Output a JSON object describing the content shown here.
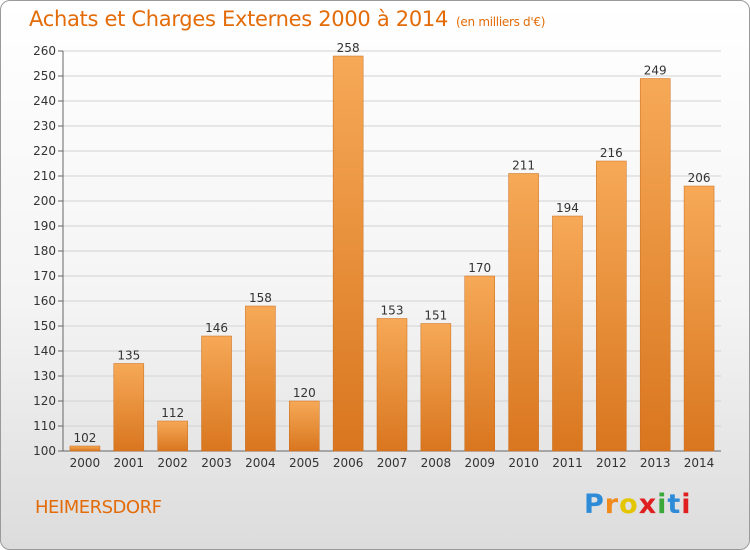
{
  "title": "Achats et Charges Externes 2000 à 2014",
  "subtitle": "(en milliers d'€)",
  "commune": "HEIMERSDORF",
  "brand": {
    "letters": [
      "P",
      "r",
      "o",
      "x",
      "i",
      "t",
      "i"
    ],
    "colors": [
      "#2e8bd8",
      "#f08a1a",
      "#e4c600",
      "#e02020",
      "#3aa93a",
      "#2e8bd8",
      "#e02020"
    ]
  },
  "colors": {
    "bar_top": "#f6a957",
    "bar_bottom": "#d9761f",
    "text_accent": "#e36c09",
    "grid": "#d2d2d2"
  },
  "chart_data": {
    "type": "bar",
    "categories": [
      "2000",
      "2001",
      "2002",
      "2003",
      "2004",
      "2005",
      "2006",
      "2007",
      "2008",
      "2009",
      "2010",
      "2011",
      "2012",
      "2013",
      "2014"
    ],
    "values": [
      102,
      135,
      112,
      146,
      158,
      120,
      258,
      153,
      151,
      170,
      211,
      194,
      216,
      249,
      206
    ],
    "data_labels": [
      "102",
      "135",
      "112",
      "146",
      "158",
      "120",
      "258",
      "153",
      "151",
      "170",
      "211",
      "194",
      "216",
      "249",
      "206"
    ],
    "title": "Achats et Charges Externes 2000 à 2014",
    "ylim": [
      100,
      260
    ],
    "yticks": [
      100,
      110,
      120,
      130,
      140,
      150,
      160,
      170,
      180,
      190,
      200,
      210,
      220,
      230,
      240,
      250,
      260
    ],
    "ytick_labels": [
      "100",
      "110",
      "120",
      "130",
      "140",
      "150",
      "160",
      "170",
      "180",
      "190",
      "200",
      "210",
      "220",
      "230",
      "240",
      "250",
      "260"
    ],
    "grid": true
  }
}
